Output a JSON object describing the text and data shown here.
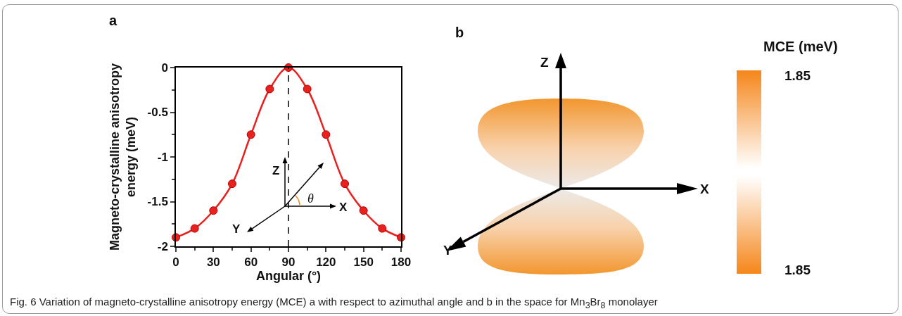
{
  "chart_data": [
    {
      "type": "line",
      "title": "a",
      "xlabel": "Angular (°)",
      "ylabel": "Magneto-crystalline anisotropy\nenergy (meV)",
      "x": [
        0,
        15,
        30,
        45,
        60,
        75,
        90,
        105,
        120,
        135,
        150,
        165,
        180
      ],
      "series": [
        {
          "color": "#e8201e",
          "values": [
            -1.9,
            -1.8,
            -1.6,
            -1.3,
            -0.75,
            -0.24,
            0,
            -0.24,
            -0.75,
            -1.3,
            -1.6,
            -1.8,
            -1.9
          ]
        }
      ],
      "xlim": [
        0,
        180
      ],
      "xticks": [
        0,
        30,
        60,
        90,
        120,
        150,
        180
      ],
      "ylim": [
        -2,
        0
      ],
      "yticks": [
        0,
        -0.5,
        -1,
        -1.5,
        -2
      ],
      "marker": "circle",
      "line_style": "solid",
      "ref_lines": [
        {
          "axis": "x",
          "value": 90,
          "color": "#000000",
          "line_style": "dashed"
        }
      ],
      "annotations": [
        "Z",
        "X",
        "Y",
        "θ"
      ]
    },
    {
      "type": "other",
      "title": "b",
      "clabel": "MCE (meV)",
      "annotations": [
        "Z",
        "X",
        "Y",
        "1.85",
        "1.85",
        "Fig. 6  Variation of magneto-crystalline anisotropy energy (MCE) a with respect to azimuthal angle and b in the space for Mn$_{3}$Br$_{8}$ monolayer"
      ]
    }
  ]
}
